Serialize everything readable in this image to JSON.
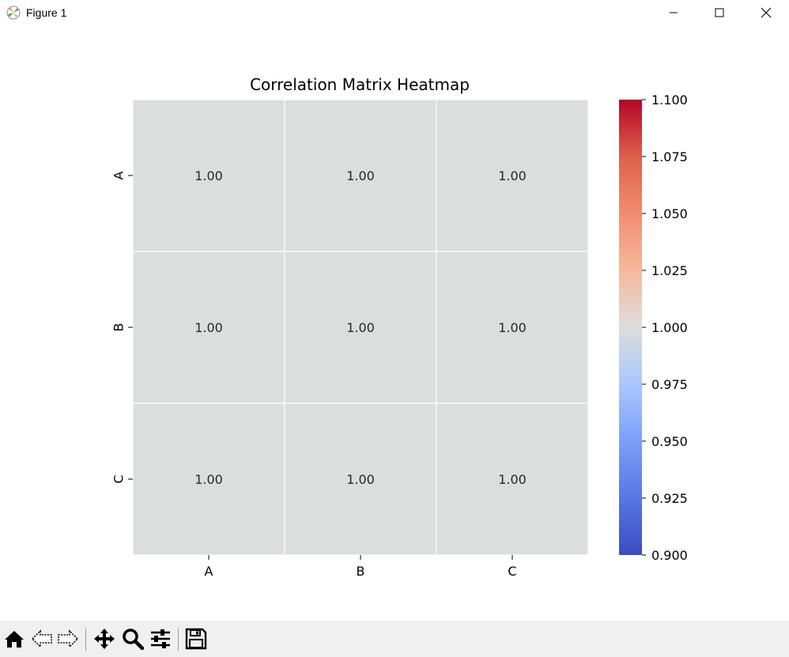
{
  "window": {
    "title": "Figure 1"
  },
  "toolbar": {
    "icons": [
      "home-icon",
      "back-arrow-icon",
      "forward-arrow-icon",
      "pan-move-icon",
      "zoom-magnifier-icon",
      "configure-subplots-icon",
      "save-floppy-icon"
    ]
  },
  "chart_data": {
    "type": "heatmap",
    "title": "Correlation Matrix Heatmap",
    "x_categories": [
      "A",
      "B",
      "C"
    ],
    "y_categories": [
      "A",
      "B",
      "C"
    ],
    "values": [
      [
        1.0,
        1.0,
        1.0
      ],
      [
        1.0,
        1.0,
        1.0
      ],
      [
        1.0,
        1.0,
        1.0
      ]
    ],
    "annotations": [
      [
        "1.00",
        "1.00",
        "1.00"
      ],
      [
        "1.00",
        "1.00",
        "1.00"
      ],
      [
        "1.00",
        "1.00",
        "1.00"
      ]
    ],
    "xlabel": "",
    "ylabel": "",
    "colormap": "coolwarm",
    "cell_color": "#dcdddd",
    "colorbar": {
      "range": [
        0.9,
        1.1
      ],
      "ticks": [
        "0.900",
        "0.925",
        "0.950",
        "0.975",
        "1.000",
        "1.025",
        "1.050",
        "1.075",
        "1.100"
      ],
      "low_color": "#3b4cc0",
      "mid_color": "#dddddd",
      "high_color": "#b40426"
    },
    "grid": false
  }
}
